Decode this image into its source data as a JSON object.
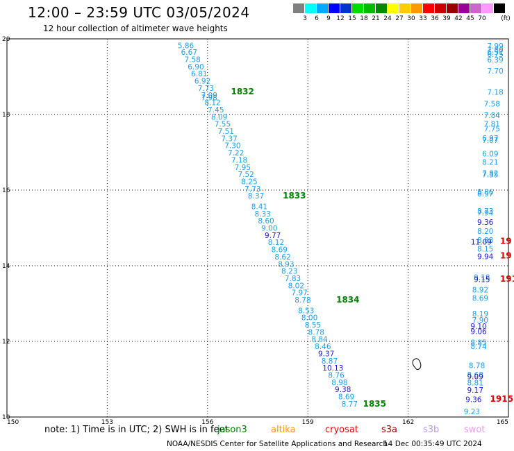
{
  "header": {
    "title": "12:00 – 23:59 UTC 03/05/2024",
    "subtitle": "12 hour collection of altimeter wave heights"
  },
  "colorbar": {
    "unit_label": "(ft)",
    "swatches": [
      {
        "color": "#808080",
        "label": ""
      },
      {
        "color": "#00ffff",
        "label": "3"
      },
      {
        "color": "#00aaff",
        "label": "6"
      },
      {
        "color": "#0000ff",
        "label": "9"
      },
      {
        "color": "#0033cc",
        "label": "12"
      },
      {
        "color": "#00dd00",
        "label": "15"
      },
      {
        "color": "#00bb00",
        "label": "18"
      },
      {
        "color": "#008800",
        "label": "21"
      },
      {
        "color": "#ffff00",
        "label": "24"
      },
      {
        "color": "#ffcc00",
        "label": "27"
      },
      {
        "color": "#ff9900",
        "label": "30"
      },
      {
        "color": "#ff0000",
        "label": "33"
      },
      {
        "color": "#cc0000",
        "label": "36"
      },
      {
        "color": "#990000",
        "label": "39"
      },
      {
        "color": "#990099",
        "label": "42"
      },
      {
        "color": "#cc66cc",
        "label": "45"
      },
      {
        "color": "#ff99ff",
        "label": "70"
      },
      {
        "color": "#000000",
        "label": ""
      }
    ]
  },
  "map": {
    "lon_ticks": [
      "150",
      "153",
      "156",
      "159",
      "162",
      "165"
    ],
    "lat_ticks": [
      "20",
      "18",
      "16",
      "14",
      "12",
      "10"
    ]
  },
  "colors": {
    "light_blue": "#1a9ee8",
    "dark_blue": "#1a1acc",
    "green": "#008000",
    "red": "#e00000",
    "grid": "#000000"
  },
  "track1": {
    "labels": [
      {
        "lon": 155.35,
        "lat": 19.83,
        "v": "5.86"
      },
      {
        "lon": 155.45,
        "lat": 19.65,
        "v": "6.67"
      },
      {
        "lon": 155.55,
        "lat": 19.46,
        "v": "7.58"
      },
      {
        "lon": 155.65,
        "lat": 19.27,
        "v": "6.90"
      },
      {
        "lon": 155.75,
        "lat": 19.08,
        "v": "6.81"
      },
      {
        "lon": 155.85,
        "lat": 18.89,
        "v": "6.92"
      },
      {
        "lon": 155.95,
        "lat": 18.7,
        "v": "7.73"
      },
      {
        "lon": 156.05,
        "lat": 18.51,
        "v": "7.09"
      },
      {
        "lon": 156.05,
        "lat": 18.45,
        "v": "7.98"
      },
      {
        "lon": 156.15,
        "lat": 18.32,
        "v": "8.12"
      },
      {
        "lon": 156.25,
        "lat": 18.13,
        "v": "7.45"
      },
      {
        "lon": 156.35,
        "lat": 17.94,
        "v": "8.09"
      },
      {
        "lon": 156.45,
        "lat": 17.75,
        "v": "7.55"
      },
      {
        "lon": 156.55,
        "lat": 17.56,
        "v": "7.51"
      },
      {
        "lon": 156.65,
        "lat": 17.37,
        "v": "7.37"
      },
      {
        "lon": 156.75,
        "lat": 17.18,
        "v": "7.30"
      },
      {
        "lon": 156.85,
        "lat": 16.99,
        "v": "7.22"
      },
      {
        "lon": 156.95,
        "lat": 16.8,
        "v": "7.18"
      },
      {
        "lon": 157.05,
        "lat": 16.61,
        "v": "7.95"
      },
      {
        "lon": 157.15,
        "lat": 16.42,
        "v": "7.52"
      },
      {
        "lon": 157.25,
        "lat": 16.23,
        "v": "8.25"
      },
      {
        "lon": 157.35,
        "lat": 16.04,
        "v": "7.73"
      },
      {
        "lon": 157.45,
        "lat": 15.85,
        "v": "8.37"
      },
      {
        "lon": 157.55,
        "lat": 15.57,
        "v": "8.41",
        "c": "light"
      },
      {
        "lon": 157.65,
        "lat": 15.38,
        "v": "8.33"
      },
      {
        "lon": 157.75,
        "lat": 15.19,
        "v": "8.60"
      },
      {
        "lon": 157.85,
        "lat": 15.0,
        "v": "9.00"
      },
      {
        "lon": 157.95,
        "lat": 14.81,
        "v": "9.77",
        "c": "dark"
      },
      {
        "lon": 158.05,
        "lat": 14.62,
        "v": "8.12"
      },
      {
        "lon": 158.15,
        "lat": 14.43,
        "v": "8.69"
      },
      {
        "lon": 158.25,
        "lat": 14.24,
        "v": "8.62"
      },
      {
        "lon": 158.35,
        "lat": 14.05,
        "v": "8.93"
      },
      {
        "lon": 158.45,
        "lat": 13.86,
        "v": "8.23"
      },
      {
        "lon": 158.55,
        "lat": 13.67,
        "v": "7.83"
      },
      {
        "lon": 158.65,
        "lat": 13.48,
        "v": "8.02"
      },
      {
        "lon": 158.75,
        "lat": 13.29,
        "v": "7.97"
      },
      {
        "lon": 158.85,
        "lat": 13.1,
        "v": "8.78"
      },
      {
        "lon": 158.95,
        "lat": 12.82,
        "v": "8.53"
      },
      {
        "lon": 159.05,
        "lat": 12.63,
        "v": "8.00"
      },
      {
        "lon": 159.15,
        "lat": 12.44,
        "v": "8.55"
      },
      {
        "lon": 159.25,
        "lat": 12.25,
        "v": "8.78"
      },
      {
        "lon": 159.35,
        "lat": 12.06,
        "v": "8.84"
      },
      {
        "lon": 159.45,
        "lat": 11.87,
        "v": "8.46"
      },
      {
        "lon": 159.55,
        "lat": 11.68,
        "v": "9.37",
        "c": "dark"
      },
      {
        "lon": 159.65,
        "lat": 11.49,
        "v": "8.87"
      },
      {
        "lon": 159.75,
        "lat": 11.3,
        "v": "10.13",
        "c": "dark"
      },
      {
        "lon": 159.85,
        "lat": 11.11,
        "v": "8.76"
      },
      {
        "lon": 159.95,
        "lat": 10.92,
        "v": "8.98"
      },
      {
        "lon": 160.05,
        "lat": 10.73,
        "v": "9.38",
        "c": "dark"
      },
      {
        "lon": 160.15,
        "lat": 10.54,
        "v": "8.69"
      },
      {
        "lon": 160.25,
        "lat": 10.35,
        "v": "8.77"
      }
    ]
  },
  "track2": {
    "labels": [
      {
        "lon": 164.85,
        "lat": 19.82,
        "v": "7.99"
      },
      {
        "lon": 164.85,
        "lat": 19.72,
        "v": "7.80"
      },
      {
        "lon": 164.85,
        "lat": 19.65,
        "v": "6.51"
      },
      {
        "lon": 164.85,
        "lat": 19.6,
        "v": "6.75"
      },
      {
        "lon": 164.85,
        "lat": 19.45,
        "v": "6.39"
      },
      {
        "lon": 164.85,
        "lat": 19.16,
        "v": "7.70"
      },
      {
        "lon": 164.85,
        "lat": 18.6,
        "v": "7.18"
      },
      {
        "lon": 164.75,
        "lat": 18.28,
        "v": "7.58"
      },
      {
        "lon": 164.75,
        "lat": 17.98,
        "v": "7.84"
      },
      {
        "lon": 164.75,
        "lat": 17.75,
        "v": "7.81"
      },
      {
        "lon": 164.75,
        "lat": 17.62,
        "v": "7.75"
      },
      {
        "lon": 164.7,
        "lat": 17.38,
        "v": "6.97"
      },
      {
        "lon": 164.7,
        "lat": 17.32,
        "v": "7.07"
      },
      {
        "lon": 164.7,
        "lat": 16.96,
        "v": "6.09"
      },
      {
        "lon": 164.7,
        "lat": 16.74,
        "v": "8.21"
      },
      {
        "lon": 164.7,
        "lat": 16.45,
        "v": "7.82"
      },
      {
        "lon": 164.7,
        "lat": 16.41,
        "v": "7.35"
      },
      {
        "lon": 164.55,
        "lat": 15.95,
        "v": "8.86"
      },
      {
        "lon": 164.55,
        "lat": 15.91,
        "v": "8.97"
      },
      {
        "lon": 164.55,
        "lat": 15.45,
        "v": "8.73"
      },
      {
        "lon": 164.55,
        "lat": 15.4,
        "v": "7.94"
      },
      {
        "lon": 164.55,
        "lat": 15.16,
        "v": "9.36",
        "c": "dark"
      },
      {
        "lon": 164.55,
        "lat": 14.92,
        "v": "8.20"
      },
      {
        "lon": 164.55,
        "lat": 14.68,
        "v": "8.88"
      },
      {
        "lon": 164.5,
        "lat": 14.63,
        "v": "11.09",
        "c": "dark"
      },
      {
        "lon": 164.55,
        "lat": 14.45,
        "v": "8.15"
      },
      {
        "lon": 164.55,
        "lat": 14.25,
        "v": "9.94",
        "c": "dark"
      },
      {
        "lon": 164.45,
        "lat": 13.7,
        "v": "9.18"
      },
      {
        "lon": 164.45,
        "lat": 13.64,
        "v": "9.15",
        "c": "dark"
      },
      {
        "lon": 164.4,
        "lat": 13.37,
        "v": "8.92"
      },
      {
        "lon": 164.4,
        "lat": 13.15,
        "v": "8.69"
      },
      {
        "lon": 164.4,
        "lat": 12.73,
        "v": "8.19"
      },
      {
        "lon": 164.4,
        "lat": 12.57,
        "v": "7.90"
      },
      {
        "lon": 164.35,
        "lat": 12.4,
        "v": "9.10",
        "c": "dark"
      },
      {
        "lon": 164.35,
        "lat": 12.27,
        "v": "9.06",
        "c": "dark"
      },
      {
        "lon": 164.35,
        "lat": 11.97,
        "v": "8.85"
      },
      {
        "lon": 164.35,
        "lat": 11.87,
        "v": "8.74"
      },
      {
        "lon": 164.3,
        "lat": 11.37,
        "v": "8.78"
      },
      {
        "lon": 164.25,
        "lat": 11.12,
        "v": "8.68"
      },
      {
        "lon": 164.25,
        "lat": 11.07,
        "v": "9.09",
        "c": "dark"
      },
      {
        "lon": 164.25,
        "lat": 10.91,
        "v": "8.81"
      },
      {
        "lon": 164.25,
        "lat": 10.72,
        "v": "9.17",
        "c": "dark"
      },
      {
        "lon": 164.2,
        "lat": 10.47,
        "v": "9.36",
        "c": "dark"
      },
      {
        "lon": 164.15,
        "lat": 10.15,
        "v": "9.23"
      }
    ]
  },
  "orbits": [
    {
      "lon": 156.7,
      "lat": 18.61,
      "v": "1832",
      "c": "green"
    },
    {
      "lon": 158.25,
      "lat": 15.85,
      "v": "1833",
      "c": "green"
    },
    {
      "lon": 159.85,
      "lat": 13.1,
      "v": "1834",
      "c": "green"
    },
    {
      "lon": 160.65,
      "lat": 10.35,
      "v": "1835",
      "c": "green"
    },
    {
      "lon": 164.75,
      "lat": 14.65,
      "v": "19",
      "c": "red"
    },
    {
      "lon": 164.75,
      "lat": 14.27,
      "v": "19",
      "c": "red"
    },
    {
      "lon": 164.75,
      "lat": 13.65,
      "v": "191",
      "c": "red"
    },
    {
      "lon": 164.45,
      "lat": 10.48,
      "v": "1915",
      "c": "red"
    }
  ],
  "footer": {
    "note": "note: 1) Time is in UTC; 2) SWH is in feet",
    "satellites": [
      {
        "name": "jason3",
        "color": "#008000"
      },
      {
        "name": "altika",
        "color": "#ff9900"
      },
      {
        "name": "cryosat",
        "color": "#e00000"
      },
      {
        "name": "s3a",
        "color": "#990000"
      },
      {
        "name": "s3b",
        "color": "#bb99dd"
      },
      {
        "name": "swot",
        "color": "#ee99ee"
      }
    ],
    "credit": "NOAA/NESDIS Center for Satellite Applications and Research",
    "timestamp": "14 Dec 00:35:49 UTC 2024"
  }
}
